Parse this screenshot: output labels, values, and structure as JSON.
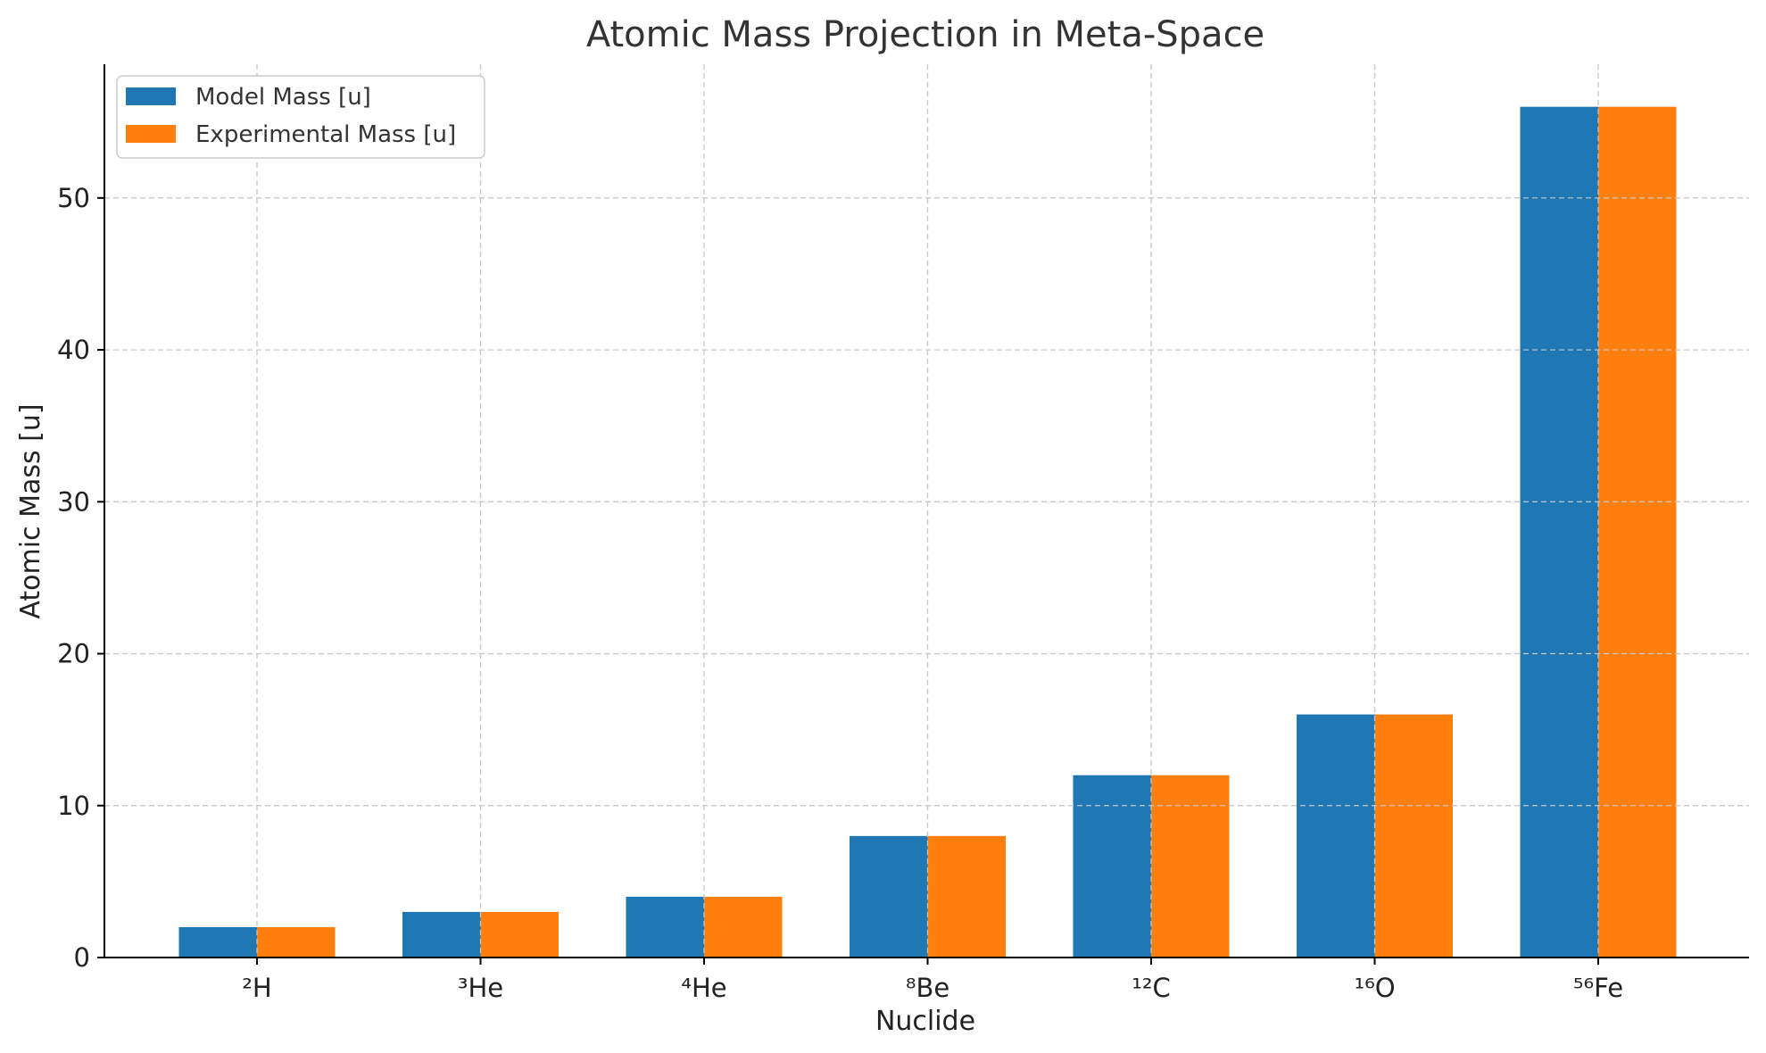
{
  "chart_data": {
    "type": "bar",
    "title": "Atomic Mass Projection in Meta-Space",
    "xlabel": "Nuclide",
    "ylabel": "Atomic Mass [u]",
    "categories": [
      "²H",
      "³He",
      "⁴He",
      "⁸Be",
      "¹²C",
      "¹⁶O",
      "⁵⁶Fe"
    ],
    "series": [
      {
        "name": "Model Mass [u]",
        "values": [
          2,
          3,
          4,
          8,
          12,
          16,
          56
        ],
        "color": "#1f77b4"
      },
      {
        "name": "Experimental Mass [u]",
        "values": [
          2,
          3,
          4,
          8,
          12,
          16,
          56
        ],
        "color": "#ff7f0e"
      }
    ],
    "ylim": [
      0,
      58.8
    ],
    "yticks": [
      0,
      10,
      20,
      30,
      40,
      50
    ],
    "grid": true,
    "legend_position": "top-left"
  }
}
